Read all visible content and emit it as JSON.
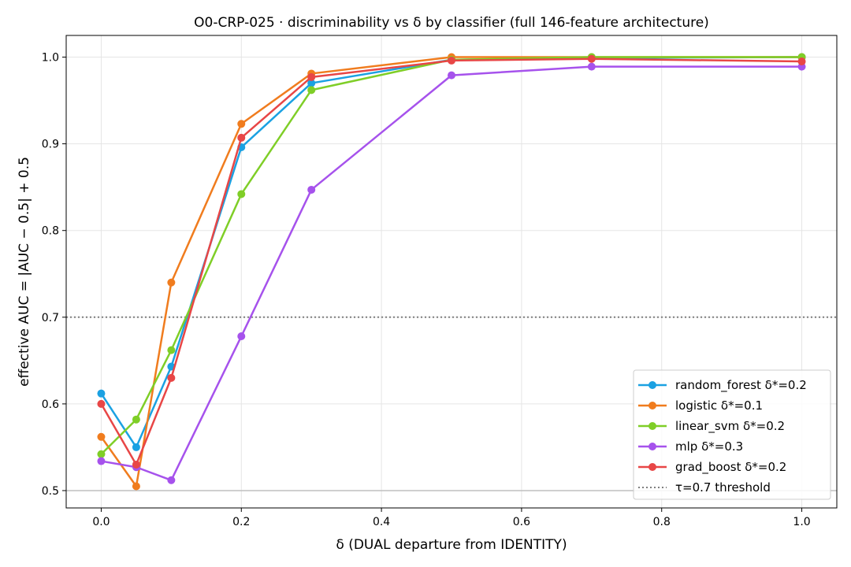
{
  "chart_data": {
    "type": "line",
    "title": "O0-CRP-025 · discriminability vs δ by classifier (full 146-feature architecture)",
    "xlabel": "δ (DUAL departure from IDENTITY)",
    "ylabel": "effective AUC = |AUC − 0.5| + 0.5",
    "xlim": [
      -0.05,
      1.05
    ],
    "ylim": [
      0.48,
      1.025
    ],
    "xticks": [
      0.0,
      0.2,
      0.4,
      0.6,
      0.8,
      1.0
    ],
    "xtick_labels": [
      "0.0",
      "0.2",
      "0.4",
      "0.6",
      "0.8",
      "1.0"
    ],
    "yticks": [
      0.5,
      0.6,
      0.7,
      0.8,
      0.9,
      1.0
    ],
    "ytick_labels": [
      "0.5",
      "0.6",
      "0.7",
      "0.8",
      "0.9",
      "1.0"
    ],
    "grid": true,
    "legend_position": "lower-right",
    "x": [
      0.0,
      0.05,
      0.1,
      0.2,
      0.3,
      0.5,
      0.7,
      1.0
    ],
    "series": [
      {
        "name": "random_forest  δ*=0.2",
        "color": "#1ba1e2",
        "values": [
          0.612,
          0.55,
          0.643,
          0.896,
          0.97,
          0.997,
          0.999,
          1.0
        ]
      },
      {
        "name": "logistic  δ*=0.1",
        "color": "#f07c1e",
        "values": [
          0.562,
          0.505,
          0.74,
          0.923,
          0.981,
          1.0,
          1.0,
          1.0
        ]
      },
      {
        "name": "linear_svm  δ*=0.2",
        "color": "#7fce27",
        "values": [
          0.542,
          0.582,
          0.662,
          0.842,
          0.962,
          0.997,
          1.0,
          1.0
        ]
      },
      {
        "name": "mlp  δ*=0.3",
        "color": "#a652ec",
        "values": [
          0.534,
          0.527,
          0.512,
          0.678,
          0.847,
          0.979,
          0.989,
          0.989
        ]
      },
      {
        "name": "grad_boost  δ*=0.2",
        "color": "#e84646",
        "values": [
          0.6,
          0.53,
          0.63,
          0.907,
          0.977,
          0.996,
          0.998,
          0.995
        ]
      }
    ],
    "reference_lines": [
      {
        "name": "τ=0.7 threshold",
        "y": 0.7,
        "style": "dotted",
        "color": "#7f7f7f"
      },
      {
        "name": "",
        "y": 0.5,
        "style": "solid",
        "color": "#bfbfbf"
      }
    ]
  }
}
